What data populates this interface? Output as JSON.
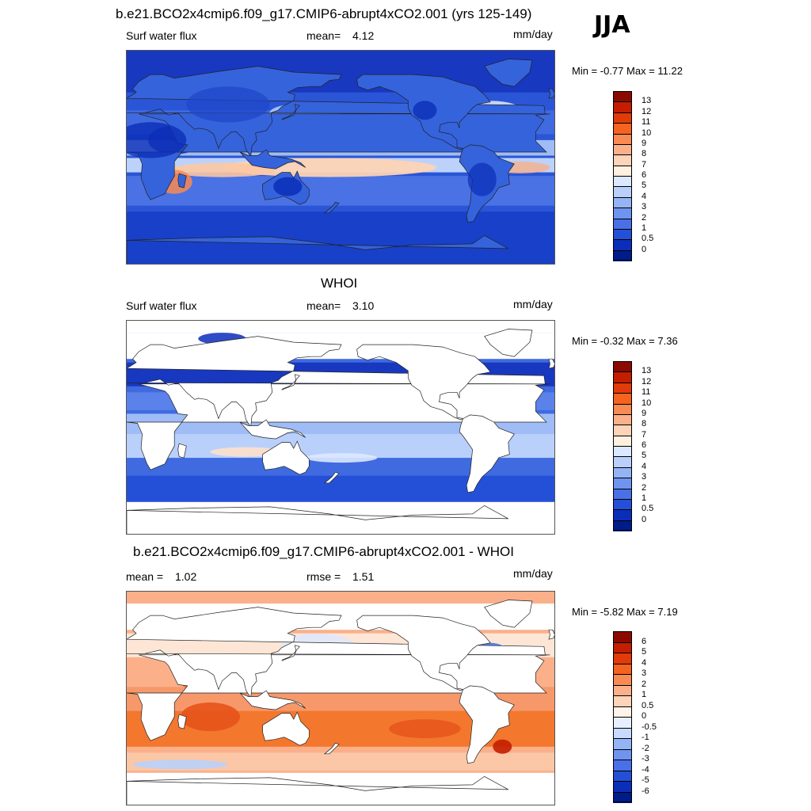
{
  "season": "JJA",
  "panels": [
    {
      "title": "b.e21.BCO2x4cmip6.f09_g17.CMIP6-abrupt4xCO2.001 (yrs 125-149)",
      "left_label": "Surf water flux",
      "stat_label": "mean=",
      "stat_value": "4.12",
      "stat2_label": "",
      "stat2_value": "",
      "units": "mm/day",
      "min_max": "Min =  -0.77 Max =  11.22",
      "field": "model",
      "colorbar_labels": [
        "13",
        "12",
        "11",
        "10",
        "9",
        "8",
        "7",
        "6",
        "5",
        "4",
        "3",
        "2",
        "1",
        "0.5",
        "0"
      ],
      "colorbar_colors": [
        "#8b0a00",
        "#c41e00",
        "#e23b0a",
        "#f4631f",
        "#f98a52",
        "#fbb08a",
        "#fdd3b9",
        "#fff0e0",
        "#dbe8ff",
        "#b9d0fb",
        "#94b4f6",
        "#6f94f0",
        "#4a70e8",
        "#2450d8",
        "#0b2eb8",
        "#001c8a"
      ]
    },
    {
      "title": "WHOI",
      "left_label": "Surf water flux",
      "stat_label": "mean=",
      "stat_value": "3.10",
      "stat2_label": "",
      "stat2_value": "",
      "units": "mm/day",
      "min_max": "Min =  -0.32 Max =   7.36",
      "field": "obs",
      "colorbar_labels": [
        "13",
        "12",
        "11",
        "10",
        "9",
        "8",
        "7",
        "6",
        "5",
        "4",
        "3",
        "2",
        "1",
        "0.5",
        "0"
      ],
      "colorbar_colors": [
        "#8b0a00",
        "#c41e00",
        "#e23b0a",
        "#f4631f",
        "#f98a52",
        "#fbb08a",
        "#fdd3b9",
        "#fff0e0",
        "#dbe8ff",
        "#b9d0fb",
        "#94b4f6",
        "#6f94f0",
        "#4a70e8",
        "#2450d8",
        "#0b2eb8",
        "#001c8a"
      ]
    },
    {
      "title": "b.e21.BCO2x4cmip6.f09_g17.CMIP6-abrupt4xCO2.001 - WHOI",
      "left_label": "mean =",
      "stat_label": "",
      "stat_value": "1.02",
      "stat2_label": "rmse =",
      "stat2_value": "1.51",
      "units": "mm/day",
      "min_max": "Min =  -5.82 Max =   7.19",
      "field": "diff",
      "colorbar_labels": [
        "6",
        "5",
        "4",
        "3",
        "2",
        "1",
        "0.5",
        "0",
        "-0.5",
        "-1",
        "-2",
        "-3",
        "-4",
        "-5",
        "-6"
      ],
      "colorbar_colors": [
        "#8b0a00",
        "#c41e00",
        "#e23b0a",
        "#f4631f",
        "#f98a52",
        "#fbb08a",
        "#fdd3b9",
        "#fff3ea",
        "#e8f0ff",
        "#c8daff",
        "#94b4f6",
        "#6f94f0",
        "#4a70e8",
        "#2450d8",
        "#0b2eb8",
        "#001c8a"
      ]
    }
  ]
}
